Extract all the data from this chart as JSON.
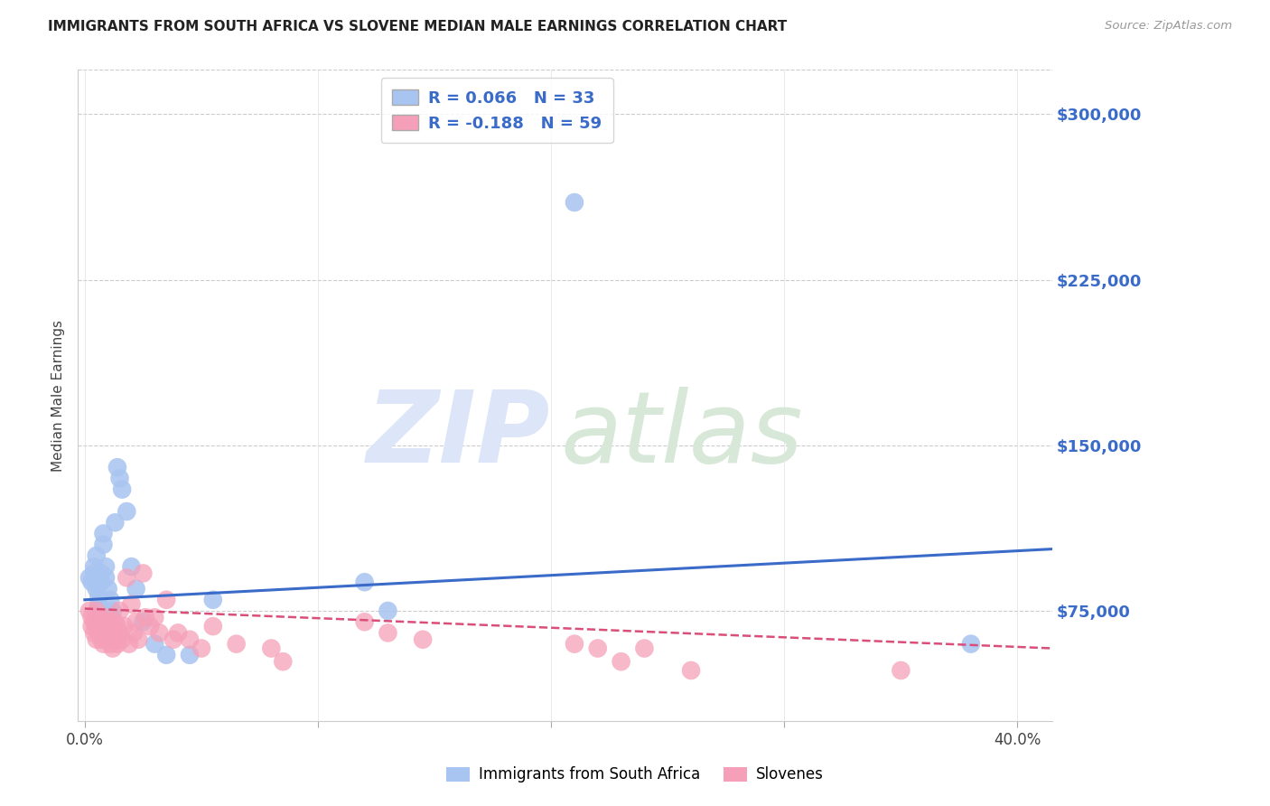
{
  "title": "IMMIGRANTS FROM SOUTH AFRICA VS SLOVENE MEDIAN MALE EARNINGS CORRELATION CHART",
  "source": "Source: ZipAtlas.com",
  "ylabel": "Median Male Earnings",
  "xlabel_ticks": [
    "0.0%",
    "",
    "",
    "",
    "40.0%"
  ],
  "xlabel_tick_vals": [
    0.0,
    0.1,
    0.2,
    0.3,
    0.4
  ],
  "ytick_labels": [
    "$75,000",
    "$150,000",
    "$225,000",
    "$300,000"
  ],
  "ytick_vals": [
    75000,
    150000,
    225000,
    300000
  ],
  "ylim": [
    25000,
    320000
  ],
  "xlim": [
    -0.003,
    0.415
  ],
  "blue_color": "#a8c4f0",
  "pink_color": "#f5a0b8",
  "blue_line_color": "#3a6bc9",
  "pink_line_color": "#d94f7a",
  "legend_blue_R": "R = 0.066",
  "legend_blue_N": "N = 33",
  "legend_pink_R": "R = -0.188",
  "legend_pink_N": "N = 59",
  "blue_scatter_x": [
    0.002,
    0.003,
    0.004,
    0.004,
    0.005,
    0.005,
    0.006,
    0.006,
    0.007,
    0.007,
    0.008,
    0.008,
    0.009,
    0.009,
    0.01,
    0.011,
    0.012,
    0.013,
    0.014,
    0.015,
    0.016,
    0.018,
    0.02,
    0.022,
    0.025,
    0.03,
    0.035,
    0.045,
    0.055,
    0.12,
    0.13,
    0.21,
    0.38
  ],
  "blue_scatter_y": [
    90000,
    88000,
    95000,
    92000,
    100000,
    85000,
    82000,
    78000,
    92000,
    88000,
    110000,
    105000,
    95000,
    90000,
    85000,
    80000,
    75000,
    115000,
    140000,
    135000,
    130000,
    120000,
    95000,
    85000,
    70000,
    60000,
    55000,
    55000,
    80000,
    88000,
    75000,
    260000,
    60000
  ],
  "pink_scatter_x": [
    0.002,
    0.003,
    0.003,
    0.004,
    0.004,
    0.005,
    0.005,
    0.005,
    0.006,
    0.006,
    0.007,
    0.007,
    0.008,
    0.008,
    0.009,
    0.009,
    0.01,
    0.01,
    0.011,
    0.011,
    0.012,
    0.012,
    0.013,
    0.013,
    0.014,
    0.014,
    0.015,
    0.015,
    0.016,
    0.017,
    0.018,
    0.019,
    0.02,
    0.021,
    0.022,
    0.023,
    0.025,
    0.026,
    0.028,
    0.03,
    0.032,
    0.035,
    0.038,
    0.04,
    0.045,
    0.05,
    0.055,
    0.065,
    0.08,
    0.085,
    0.12,
    0.13,
    0.145,
    0.21,
    0.22,
    0.23,
    0.24,
    0.26,
    0.35
  ],
  "pink_scatter_y": [
    75000,
    72000,
    68000,
    70000,
    65000,
    75000,
    68000,
    62000,
    72000,
    65000,
    70000,
    62000,
    68000,
    60000,
    72000,
    65000,
    70000,
    62000,
    68000,
    60000,
    65000,
    58000,
    70000,
    62000,
    68000,
    60000,
    75000,
    65000,
    62000,
    68000,
    90000,
    60000,
    78000,
    65000,
    70000,
    62000,
    92000,
    72000,
    68000,
    72000,
    65000,
    80000,
    62000,
    65000,
    62000,
    58000,
    68000,
    60000,
    58000,
    52000,
    70000,
    65000,
    62000,
    60000,
    58000,
    52000,
    58000,
    48000,
    48000
  ],
  "blue_trendline_x": [
    0.0,
    0.415
  ],
  "blue_trendline_y": [
    80000,
    103000
  ],
  "pink_trendline_x": [
    0.0,
    0.415
  ],
  "pink_trendline_y": [
    76000,
    58000
  ],
  "background_color": "#ffffff",
  "grid_color": "#cccccc",
  "title_color": "#222222",
  "watermark_zip_color": "#dce6f8",
  "watermark_atlas_color": "#d8e8d8"
}
